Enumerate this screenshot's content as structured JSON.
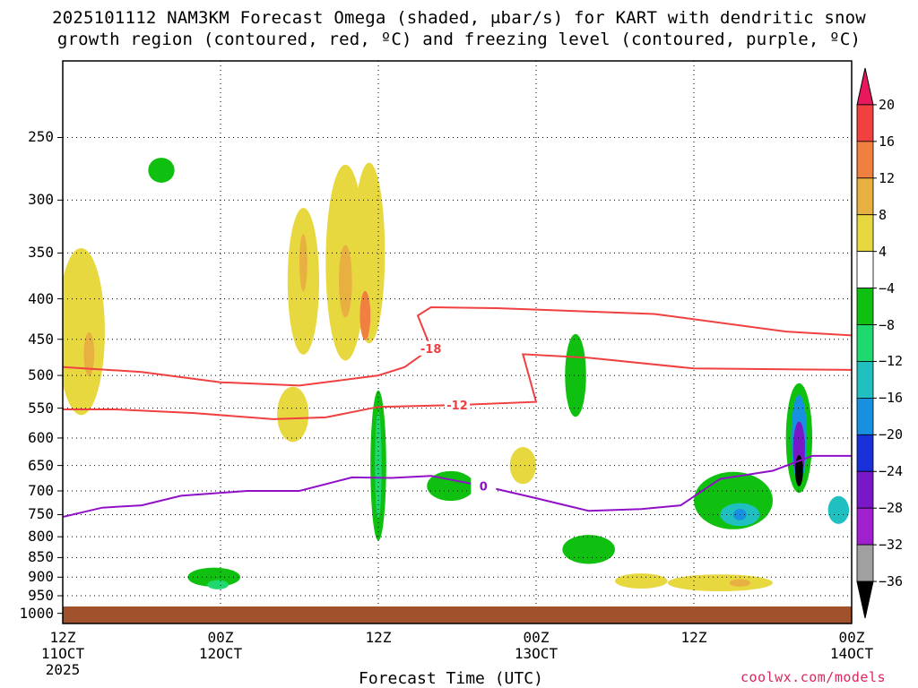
{
  "title_line1": "2025101112 NAM3KM Forecast Omega (shaded, μbar/s) for KART with dendritic snow",
  "title_line2": "growth region (contoured, red, ºC) and freezing level (contoured, purple, ºC)",
  "xaxis_title": "Forecast Time (UTC)",
  "credit": "coolwx.com/models",
  "chart_data": {
    "type": "heatmap",
    "y_axis": {
      "label": "",
      "scale": "log",
      "ticks": [
        250,
        300,
        350,
        400,
        450,
        500,
        550,
        600,
        650,
        700,
        750,
        800,
        850,
        900,
        950,
        1000
      ],
      "range": [
        200,
        1030
      ]
    },
    "x_axis": {
      "ticks": [
        {
          "line1": "12Z",
          "line2": "11OCT",
          "line3": "2025",
          "hour": 0
        },
        {
          "line1": "00Z",
          "line2": "12OCT",
          "line3": "",
          "hour": 12
        },
        {
          "line1": "12Z",
          "line2": "",
          "line3": "",
          "hour": 24
        },
        {
          "line1": "00Z",
          "line2": "13OCT",
          "line3": "",
          "hour": 36
        },
        {
          "line1": "12Z",
          "line2": "",
          "line3": "",
          "hour": 48
        },
        {
          "line1": "00Z",
          "line2": "14OCT",
          "line3": "",
          "hour": 60
        }
      ],
      "range_hours": [
        0,
        60
      ]
    },
    "colorbar": {
      "labels": [
        "20",
        "16",
        "12",
        "8",
        "4",
        "−4",
        "−8",
        "−12",
        "−16",
        "−20",
        "−24",
        "−28",
        "−32",
        "−36"
      ],
      "colors": [
        "#e8185c",
        "#f04040",
        "#f08040",
        "#e8b040",
        "#e8d840",
        "#ffffff",
        "#10c010",
        "#20d870",
        "#20c0c0",
        "#1890e0",
        "#1830d8",
        "#7818c8",
        "#a020d0",
        "#a0a0a0",
        "#000000"
      ]
    },
    "contours": [
      {
        "name": "",
        "label": "-18",
        "color": "#f04040",
        "points": [
          [
            0,
            488
          ],
          [
            6,
            495
          ],
          [
            12,
            510
          ],
          [
            18,
            515
          ],
          [
            24,
            500
          ],
          [
            26,
            488
          ],
          [
            28,
            462
          ],
          [
            27,
            420
          ],
          [
            28,
            410
          ],
          [
            33,
            411
          ],
          [
            45,
            418
          ],
          [
            55,
            440
          ],
          [
            60,
            445
          ]
        ]
      },
      {
        "name": "",
        "label": "-12",
        "color": "#f04040",
        "points": [
          [
            0,
            552
          ],
          [
            4,
            552
          ],
          [
            10,
            558
          ],
          [
            16,
            568
          ],
          [
            20,
            565
          ],
          [
            24,
            548
          ],
          [
            30,
            545
          ],
          [
            36,
            540
          ],
          [
            35,
            470
          ],
          [
            40,
            475
          ],
          [
            48,
            490
          ],
          [
            60,
            492
          ]
        ]
      },
      {
        "name": "",
        "label": "0",
        "color": "#9010c8",
        "points": [
          [
            0,
            755
          ],
          [
            3,
            735
          ],
          [
            6,
            730
          ],
          [
            9,
            710
          ],
          [
            14,
            700
          ],
          [
            18,
            700
          ],
          [
            22,
            673
          ],
          [
            25,
            674
          ],
          [
            28,
            670
          ],
          [
            32,
            690
          ],
          [
            36,
            715
          ],
          [
            40,
            742
          ],
          [
            44,
            738
          ],
          [
            47,
            730
          ],
          [
            50,
            676
          ],
          [
            54,
            660
          ],
          [
            57,
            632
          ],
          [
            60,
            632
          ]
        ]
      }
    ],
    "omega_areas": [
      {
        "value": 4,
        "t": 1.4,
        "p": 440,
        "dt": 1.8,
        "dp": 210
      },
      {
        "value": 8,
        "t": 2.0,
        "p": 470,
        "dt": 0.4,
        "dp": 60
      },
      {
        "value": 4,
        "t": 18.3,
        "p": 380,
        "dt": 1.2,
        "dp": 160
      },
      {
        "value": 8,
        "t": 18.3,
        "p": 360,
        "dt": 0.3,
        "dp": 60
      },
      {
        "value": 4,
        "t": 21.5,
        "p": 360,
        "dt": 1.5,
        "dp": 200
      },
      {
        "value": 8,
        "t": 21.5,
        "p": 380,
        "dt": 0.5,
        "dp": 80
      },
      {
        "value": 4,
        "t": 23.3,
        "p": 350,
        "dt": 1.2,
        "dp": 180
      },
      {
        "value": 12,
        "t": 23.0,
        "p": 420,
        "dt": 0.4,
        "dp": 60
      },
      {
        "value": 4,
        "t": 17.5,
        "p": 560,
        "dt": 1.2,
        "dp": 90
      },
      {
        "value": -4,
        "t": 24.0,
        "p": 650,
        "dt": 0.6,
        "dp": 280
      },
      {
        "value": -12,
        "t": 24.0,
        "p": 650,
        "dt": 0.25,
        "dp": 200
      },
      {
        "value": -8,
        "t": 11.5,
        "p": 900,
        "dt": 2.0,
        "dp": 50
      },
      {
        "value": -12,
        "t": 11.8,
        "p": 920,
        "dt": 0.8,
        "dp": 25
      },
      {
        "value": -8,
        "t": 7.5,
        "p": 275,
        "dt": 1.0,
        "dp": 20
      },
      {
        "value": -4,
        "t": 29.5,
        "p": 690,
        "dt": 1.8,
        "dp": 60
      },
      {
        "value": 4,
        "t": 35.0,
        "p": 650,
        "dt": 1.0,
        "dp": 70
      },
      {
        "value": -8,
        "t": 39.0,
        "p": 500,
        "dt": 0.8,
        "dp": 120
      },
      {
        "value": -8,
        "t": 40.0,
        "p": 830,
        "dt": 2.0,
        "dp": 70
      },
      {
        "value": 4,
        "t": 44.0,
        "p": 910,
        "dt": 2.0,
        "dp": 40
      },
      {
        "value": -8,
        "t": 51.0,
        "p": 720,
        "dt": 3.0,
        "dp": 120
      },
      {
        "value": -16,
        "t": 51.5,
        "p": 750,
        "dt": 1.5,
        "dp": 50
      },
      {
        "value": -20,
        "t": 51.5,
        "p": 750,
        "dt": 0.5,
        "dp": 25
      },
      {
        "value": -8,
        "t": 56.0,
        "p": 600,
        "dt": 1.0,
        "dp": 190
      },
      {
        "value": -20,
        "t": 56.0,
        "p": 600,
        "dt": 0.6,
        "dp": 150
      },
      {
        "value": -28,
        "t": 56.0,
        "p": 620,
        "dt": 0.45,
        "dp": 100
      },
      {
        "value": -36,
        "t": 56.0,
        "p": 660,
        "dt": 0.3,
        "dp": 60
      },
      {
        "value": 4,
        "t": 50.0,
        "p": 915,
        "dt": 4.0,
        "dp": 45
      },
      {
        "value": 8,
        "t": 51.5,
        "p": 915,
        "dt": 0.8,
        "dp": 20
      },
      {
        "value": -16,
        "t": 59.0,
        "p": 740,
        "dt": 0.8,
        "dp": 60
      }
    ]
  }
}
